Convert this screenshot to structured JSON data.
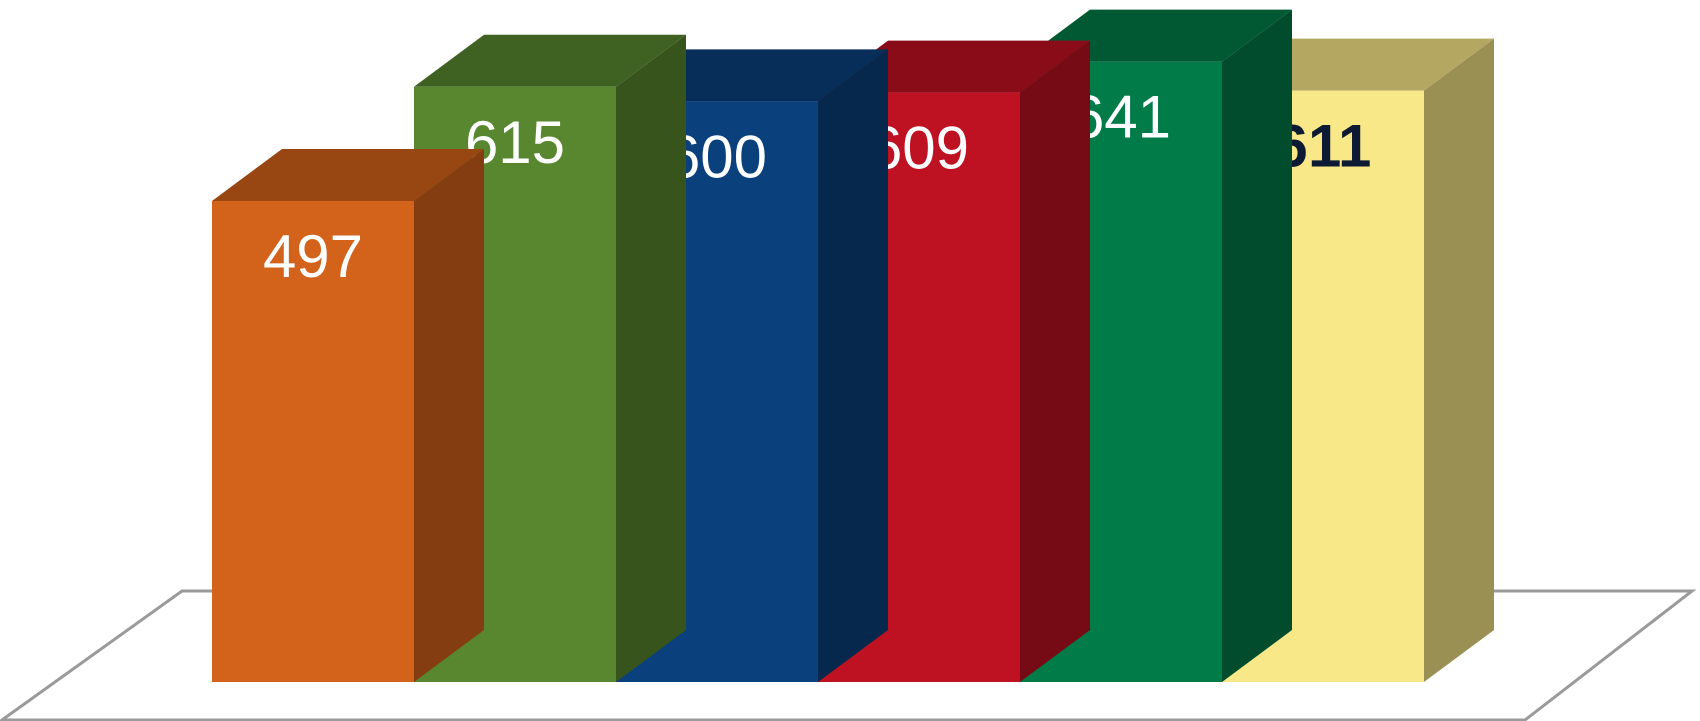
{
  "chart_data": {
    "type": "bar",
    "three_d": true,
    "grid": false,
    "legend": "none",
    "title": "",
    "xlabel": "",
    "ylabel": "",
    "categories": [
      "",
      "",
      "",
      "",
      "",
      ""
    ],
    "values": [
      497,
      615,
      600,
      609,
      641,
      611
    ],
    "data_labels": [
      "497",
      "615",
      "600",
      "609",
      "641",
      "611"
    ],
    "colors": [
      "#d3621b",
      "#58872f",
      "#0a407b",
      "#be1122",
      "#017b48",
      "#f8e887"
    ],
    "label_colors": [
      "#ffffff",
      "#ffffff",
      "#ffffff",
      "#ffffff",
      "#ffffff",
      "#0d1a33"
    ],
    "label_bold": [
      false,
      false,
      false,
      false,
      false,
      true
    ]
  }
}
